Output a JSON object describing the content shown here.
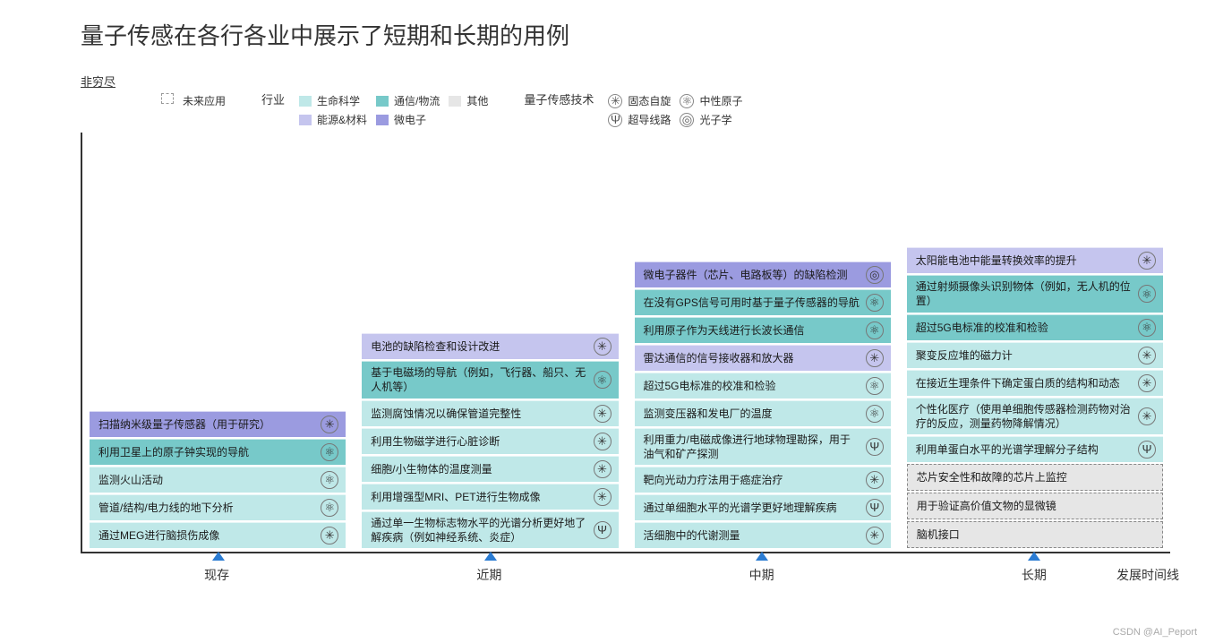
{
  "title": "量子传感在各行各业中展示了短期和长期的用例",
  "subtitle": "非穷尽",
  "legend": {
    "future_label": "未来应用",
    "industry_label": "行业",
    "tech_label": "量子传感技术",
    "industries": [
      {
        "label": "生命科学",
        "color": "#bfe8e8"
      },
      {
        "label": "能源&材料",
        "color": "#c5c5ee"
      },
      {
        "label": "通信/物流",
        "color": "#77c9c9"
      },
      {
        "label": "微电子",
        "color": "#9b9be0"
      },
      {
        "label": "其他",
        "color": "#e6e6e6"
      }
    ],
    "techs": [
      {
        "label": "固态自旋",
        "glyph": "✳"
      },
      {
        "label": "超导线路",
        "glyph": "Ψ"
      },
      {
        "label": "中性原子",
        "glyph": "⚛"
      },
      {
        "label": "光子学",
        "glyph": "◎"
      }
    ]
  },
  "axis": {
    "labels": [
      "现存",
      "近期",
      "中期",
      "长期"
    ],
    "title": "发展时间线",
    "marker_color": "#2b7cd3"
  },
  "colors": {
    "life": "#bfe8e8",
    "energy": "#c5c5ee",
    "comm": "#77c9c9",
    "micro": "#9b9be0",
    "other": "#e6e6e6"
  },
  "columns": [
    {
      "key": "existing",
      "items": [
        {
          "text": "扫描纳米级量子传感器（用于研究）",
          "industry": "micro",
          "tech": "✳",
          "future": false
        },
        {
          "text": "利用卫星上的原子钟实现的导航",
          "industry": "comm",
          "tech": "⚛",
          "future": false
        },
        {
          "text": "监测火山活动",
          "industry": "life",
          "tech": "⚛",
          "future": false
        },
        {
          "text": "管道/结构/电力线的地下分析",
          "industry": "life",
          "tech": "⚛",
          "future": false
        },
        {
          "text": "通过MEG进行脑损伤成像",
          "industry": "life",
          "tech": "✳",
          "future": false
        }
      ]
    },
    {
      "key": "near",
      "items": [
        {
          "text": "电池的缺陷检查和设计改进",
          "industry": "energy",
          "tech": "✳",
          "future": false
        },
        {
          "text": "基于电磁场的导航（例如，飞行器、船只、无人机等）",
          "industry": "comm",
          "tech": "⚛",
          "future": false
        },
        {
          "text": "监测腐蚀情况以确保管道完整性",
          "industry": "life",
          "tech": "✳",
          "future": false
        },
        {
          "text": "利用生物磁学进行心脏诊断",
          "industry": "life",
          "tech": "✳",
          "future": false
        },
        {
          "text": "细胞/小生物体的温度测量",
          "industry": "life",
          "tech": "✳",
          "future": false
        },
        {
          "text": "利用增强型MRI、PET进行生物成像",
          "industry": "life",
          "tech": "✳",
          "future": false
        },
        {
          "text": "通过单一生物标志物水平的光谱分析更好地了解疾病（例如神经系统、炎症）",
          "industry": "life",
          "tech": "Ψ",
          "future": false
        }
      ]
    },
    {
      "key": "mid",
      "items": [
        {
          "text": "微电子器件（芯片、电路板等）的缺陷检测",
          "industry": "micro",
          "tech": "◎",
          "future": false
        },
        {
          "text": "在没有GPS信号可用时基于量子传感器的导航",
          "industry": "comm",
          "tech": "⚛",
          "future": false
        },
        {
          "text": "利用原子作为天线进行长波长通信",
          "industry": "comm",
          "tech": "⚛",
          "future": false
        },
        {
          "text": "雷达通信的信号接收器和放大器",
          "industry": "energy",
          "tech": "✳",
          "future": false
        },
        {
          "text": "超过5G电标准的校准和检验",
          "industry": "life",
          "tech": "⚛",
          "future": false
        },
        {
          "text": "监测变压器和发电厂的温度",
          "industry": "life",
          "tech": "⚛",
          "future": false
        },
        {
          "text": "利用重力/电磁成像进行地球物理勘探，用于油气和矿产探测",
          "industry": "life",
          "tech": "Ψ",
          "future": false
        },
        {
          "text": "靶向光动力疗法用于癌症治疗",
          "industry": "life",
          "tech": "✳",
          "future": false
        },
        {
          "text": "通过单细胞水平的光谱学更好地理解疾病",
          "industry": "life",
          "tech": "Ψ",
          "future": false
        },
        {
          "text": "活细胞中的代谢测量",
          "industry": "life",
          "tech": "✳",
          "future": false
        }
      ]
    },
    {
      "key": "long",
      "items": [
        {
          "text": "太阳能电池中能量转换效率的提升",
          "industry": "energy",
          "tech": "✳",
          "future": false
        },
        {
          "text": "通过射频摄像头识别物体（例如，无人机的位置）",
          "industry": "comm",
          "tech": "⚛",
          "future": false
        },
        {
          "text": "超过5G电标准的校准和检验",
          "industry": "comm",
          "tech": "⚛",
          "future": false
        },
        {
          "text": "聚变反应堆的磁力计",
          "industry": "life",
          "tech": "✳",
          "future": false
        },
        {
          "text": "在接近生理条件下确定蛋白质的结构和动态",
          "industry": "life",
          "tech": "✳",
          "future": false
        },
        {
          "text": "个性化医疗（使用单细胞传感器检测药物对治疗的反应，测量药物降解情况）",
          "industry": "life",
          "tech": "✳",
          "future": false
        },
        {
          "text": "利用单蛋白水平的光谱学理解分子结构",
          "industry": "life",
          "tech": "Ψ",
          "future": false
        },
        {
          "text": "芯片安全性和故障的芯片上监控",
          "industry": "other",
          "tech": "",
          "future": true
        },
        {
          "text": "用于验证高价值文物的显微镜",
          "industry": "other",
          "tech": "",
          "future": true
        },
        {
          "text": "脑机接口",
          "industry": "other",
          "tech": "",
          "future": true
        }
      ]
    }
  ],
  "watermark": "CSDN @AI_Peport"
}
